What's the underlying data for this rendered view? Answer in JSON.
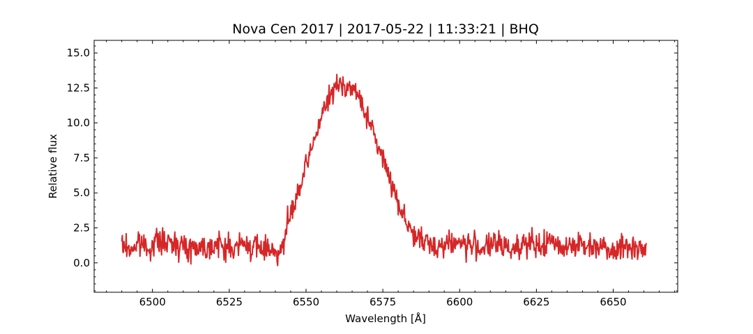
{
  "chart_data": {
    "type": "line",
    "title": "Nova Cen 2017 | 2017-05-22 | 11:33:21 | BHQ",
    "xlabel": "Wavelength [Å]",
    "ylabel": "Relative flux",
    "xlim": [
      6481,
      6671
    ],
    "ylim": [
      -2.1,
      15.9
    ],
    "xticks": [
      6500,
      6525,
      6550,
      6575,
      6600,
      6625,
      6650
    ],
    "yticks": [
      0.0,
      2.5,
      5.0,
      7.5,
      10.0,
      12.5,
      15.0
    ],
    "xtick_labels": [
      "6500",
      "6525",
      "6550",
      "6575",
      "6600",
      "6625",
      "6650"
    ],
    "ytick_labels": [
      "0.0",
      "2.5",
      "5.0",
      "7.5",
      "10.0",
      "12.5",
      "15.0"
    ],
    "grid": false,
    "series": [
      {
        "color": "#d62728",
        "x": [
          6490,
          6493,
          6496,
          6499,
          6502,
          6505,
          6508,
          6511,
          6514,
          6517,
          6520,
          6523,
          6526,
          6529,
          6532,
          6535,
          6538,
          6540,
          6542,
          6543,
          6544,
          6546,
          6548,
          6550,
          6552,
          6554,
          6556,
          6558,
          6560,
          6562,
          6564,
          6566,
          6568,
          6570,
          6572,
          6574,
          6576,
          6578,
          6580,
          6582,
          6584,
          6586,
          6588,
          6590,
          6593,
          6596,
          6599,
          6602,
          6605,
          6608,
          6611,
          6614,
          6617,
          6620,
          6623,
          6626,
          6629,
          6632,
          6635,
          6638,
          6641,
          6644,
          6647,
          6650,
          6653,
          6656,
          6659,
          6661
        ],
        "y": [
          1.2,
          1.0,
          1.4,
          1.1,
          1.6,
          1.3,
          1.5,
          1.0,
          1.2,
          1.1,
          1.3,
          1.2,
          1.0,
          1.3,
          1.2,
          1.0,
          1.1,
          0.9,
          0.8,
          1.6,
          2.8,
          4.0,
          5.3,
          6.8,
          8.3,
          9.8,
          11.0,
          12.0,
          12.6,
          12.8,
          12.6,
          12.2,
          11.5,
          10.4,
          9.2,
          8.0,
          6.9,
          5.6,
          4.3,
          3.3,
          2.4,
          1.8,
          1.5,
          1.3,
          1.2,
          1.4,
          1.5,
          1.3,
          1.2,
          1.1,
          1.3,
          1.2,
          1.0,
          1.4,
          1.3,
          1.1,
          1.5,
          1.3,
          1.2,
          1.4,
          1.1,
          1.3,
          1.2,
          1.0,
          1.1,
          1.2,
          1.0,
          1.1
        ]
      }
    ]
  }
}
